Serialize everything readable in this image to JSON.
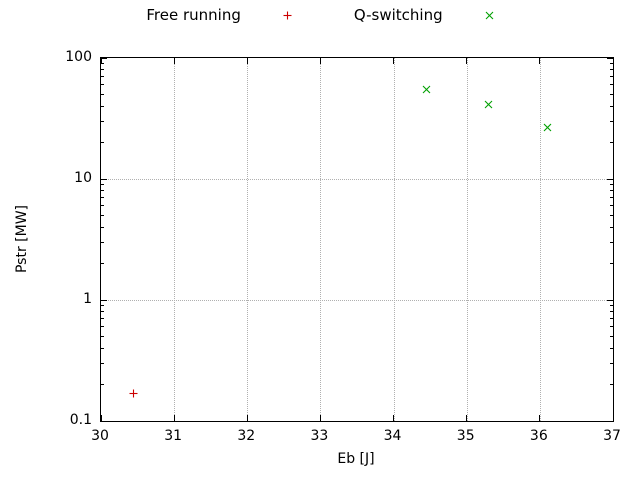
{
  "chart_data": {
    "type": "scatter",
    "title": "",
    "xlabel": "Eb [J]",
    "ylabel": "Pstr [MW]",
    "xlim": [
      30,
      37
    ],
    "ylim": [
      0.1,
      100
    ],
    "x_scale": "linear",
    "y_scale": "log",
    "grid": true,
    "legend_position": "top-center",
    "x_ticks": [
      "30",
      "31",
      "32",
      "33",
      "34",
      "35",
      "36",
      "37"
    ],
    "y_ticks": [
      "0.1",
      "1",
      "10",
      "100"
    ],
    "series": [
      {
        "name": "Free running",
        "marker": "plus",
        "color": "#cc0000",
        "points": [
          {
            "x": 30.45,
            "y": 0.19
          }
        ]
      },
      {
        "name": "Q-switching",
        "marker": "cross",
        "color": "#00a000",
        "points": [
          {
            "x": 34.45,
            "y": 62
          },
          {
            "x": 35.3,
            "y": 46
          },
          {
            "x": 36.1,
            "y": 30
          }
        ]
      }
    ]
  }
}
